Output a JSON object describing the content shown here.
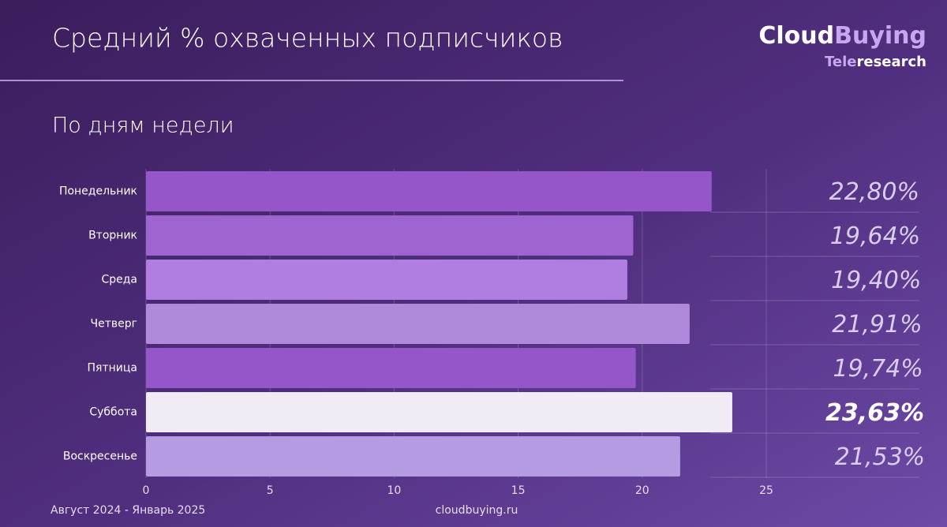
{
  "chart_data": {
    "type": "hbar",
    "title": "Средний % охваченных подписчиков",
    "subtitle": "По дням недели",
    "categories": [
      "Понедельник",
      "Вторник",
      "Среда",
      "Четверг",
      "Пятница",
      "Суббота",
      "Воскресенье"
    ],
    "values": [
      22.8,
      19.64,
      19.4,
      21.91,
      19.74,
      23.63,
      21.53
    ],
    "value_labels": [
      "22,80%",
      "19,64%",
      "19,40%",
      "21,91%",
      "19,74%",
      "23,63%",
      "21,53%"
    ],
    "colors": [
      "#9456c8",
      "#9e64d0",
      "#b07de0",
      "#b189dc",
      "#9456c8",
      "#f1ebf6",
      "#b59be1"
    ],
    "highlight_index": 5,
    "xlim": [
      0,
      25
    ],
    "xticks": [
      0,
      5,
      10,
      15,
      20,
      25
    ],
    "grid": true
  },
  "logo": {
    "brand_main": "Cloud",
    "brand_accent": "Buying",
    "sub_accent": "Tele",
    "sub_main": "research"
  },
  "footer": {
    "period": "Август 2024 - Январь 2025",
    "site": "cloudbuying.ru"
  }
}
